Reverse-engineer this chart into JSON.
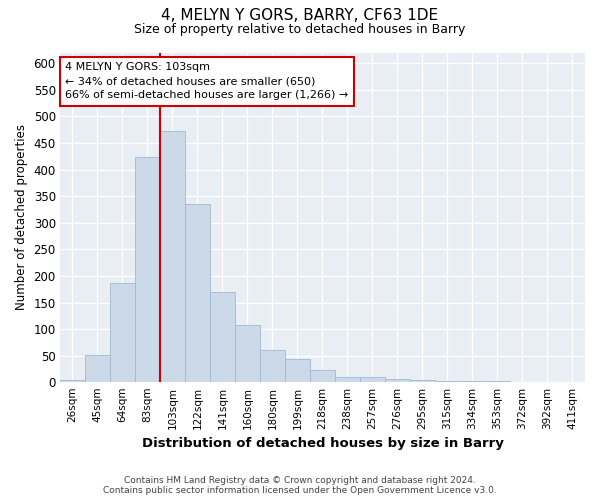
{
  "title1": "4, MELYN Y GORS, BARRY, CF63 1DE",
  "title2": "Size of property relative to detached houses in Barry",
  "xlabel": "Distribution of detached houses by size in Barry",
  "ylabel": "Number of detached properties",
  "categories": [
    "26sqm",
    "45sqm",
    "64sqm",
    "83sqm",
    "103sqm",
    "122sqm",
    "141sqm",
    "160sqm",
    "180sqm",
    "199sqm",
    "218sqm",
    "238sqm",
    "257sqm",
    "276sqm",
    "295sqm",
    "315sqm",
    "334sqm",
    "353sqm",
    "372sqm",
    "392sqm",
    "411sqm"
  ],
  "values": [
    5,
    51,
    186,
    424,
    473,
    336,
    170,
    107,
    61,
    44,
    23,
    10,
    10,
    7,
    5,
    3,
    2,
    2,
    1,
    1,
    1
  ],
  "bar_color": "#ccd9e8",
  "bar_edge_color": "#a0b8d0",
  "vline_x_index": 4,
  "vline_color": "#cc0000",
  "ylim": [
    0,
    620
  ],
  "yticks": [
    0,
    50,
    100,
    150,
    200,
    250,
    300,
    350,
    400,
    450,
    500,
    550,
    600
  ],
  "annotation_line1": "4 MELYN Y GORS: 103sqm",
  "annotation_line2": "← 34% of detached houses are smaller (650)",
  "annotation_line3": "66% of semi-detached houses are larger (1,266) →",
  "annotation_box_color": "#ffffff",
  "annotation_box_edge_color": "#cc0000",
  "footer1": "Contains HM Land Registry data © Crown copyright and database right 2024.",
  "footer2": "Contains public sector information licensed under the Open Government Licence v3.0.",
  "plot_bg_color": "#e8eef4"
}
